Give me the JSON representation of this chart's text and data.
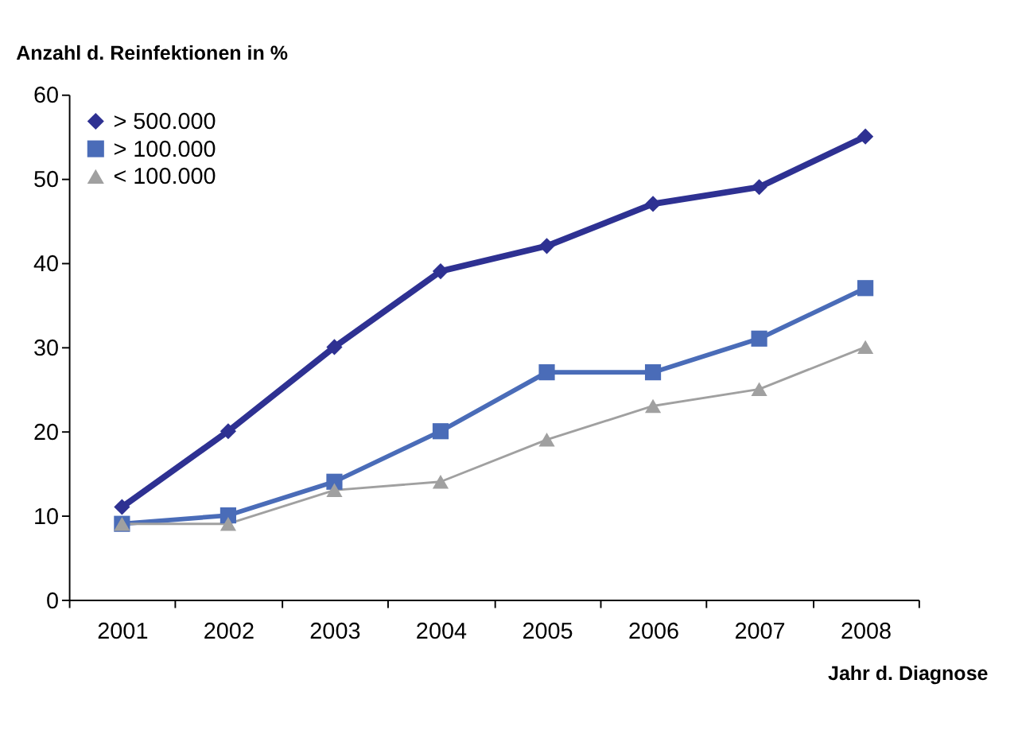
{
  "chart_data": {
    "type": "line",
    "xlabel": "Jahr d. Diagnose",
    "ylabel": "Anzahl d. Reinfektionen in %",
    "categories": [
      "2001",
      "2002",
      "2003",
      "2004",
      "2005",
      "2006",
      "2007",
      "2008"
    ],
    "series": [
      {
        "name": "> 500.000",
        "color": "#2e3192",
        "marker": "diamond",
        "values": [
          11,
          20,
          30,
          39,
          42,
          47,
          49,
          55
        ]
      },
      {
        "name": "> 100.000",
        "color": "#4a6cb8",
        "marker": "square",
        "values": [
          9,
          10,
          14,
          20,
          27,
          27,
          31,
          37
        ]
      },
      {
        "name": "< 100.000",
        "color": "#a0a0a0",
        "marker": "triangle",
        "values": [
          9,
          9,
          13,
          14,
          19,
          23,
          25,
          30
        ]
      }
    ],
    "ylim": [
      0,
      60
    ],
    "yticks": [
      0,
      10,
      20,
      30,
      40,
      50,
      60
    ],
    "grid": false,
    "legend": "top left"
  }
}
